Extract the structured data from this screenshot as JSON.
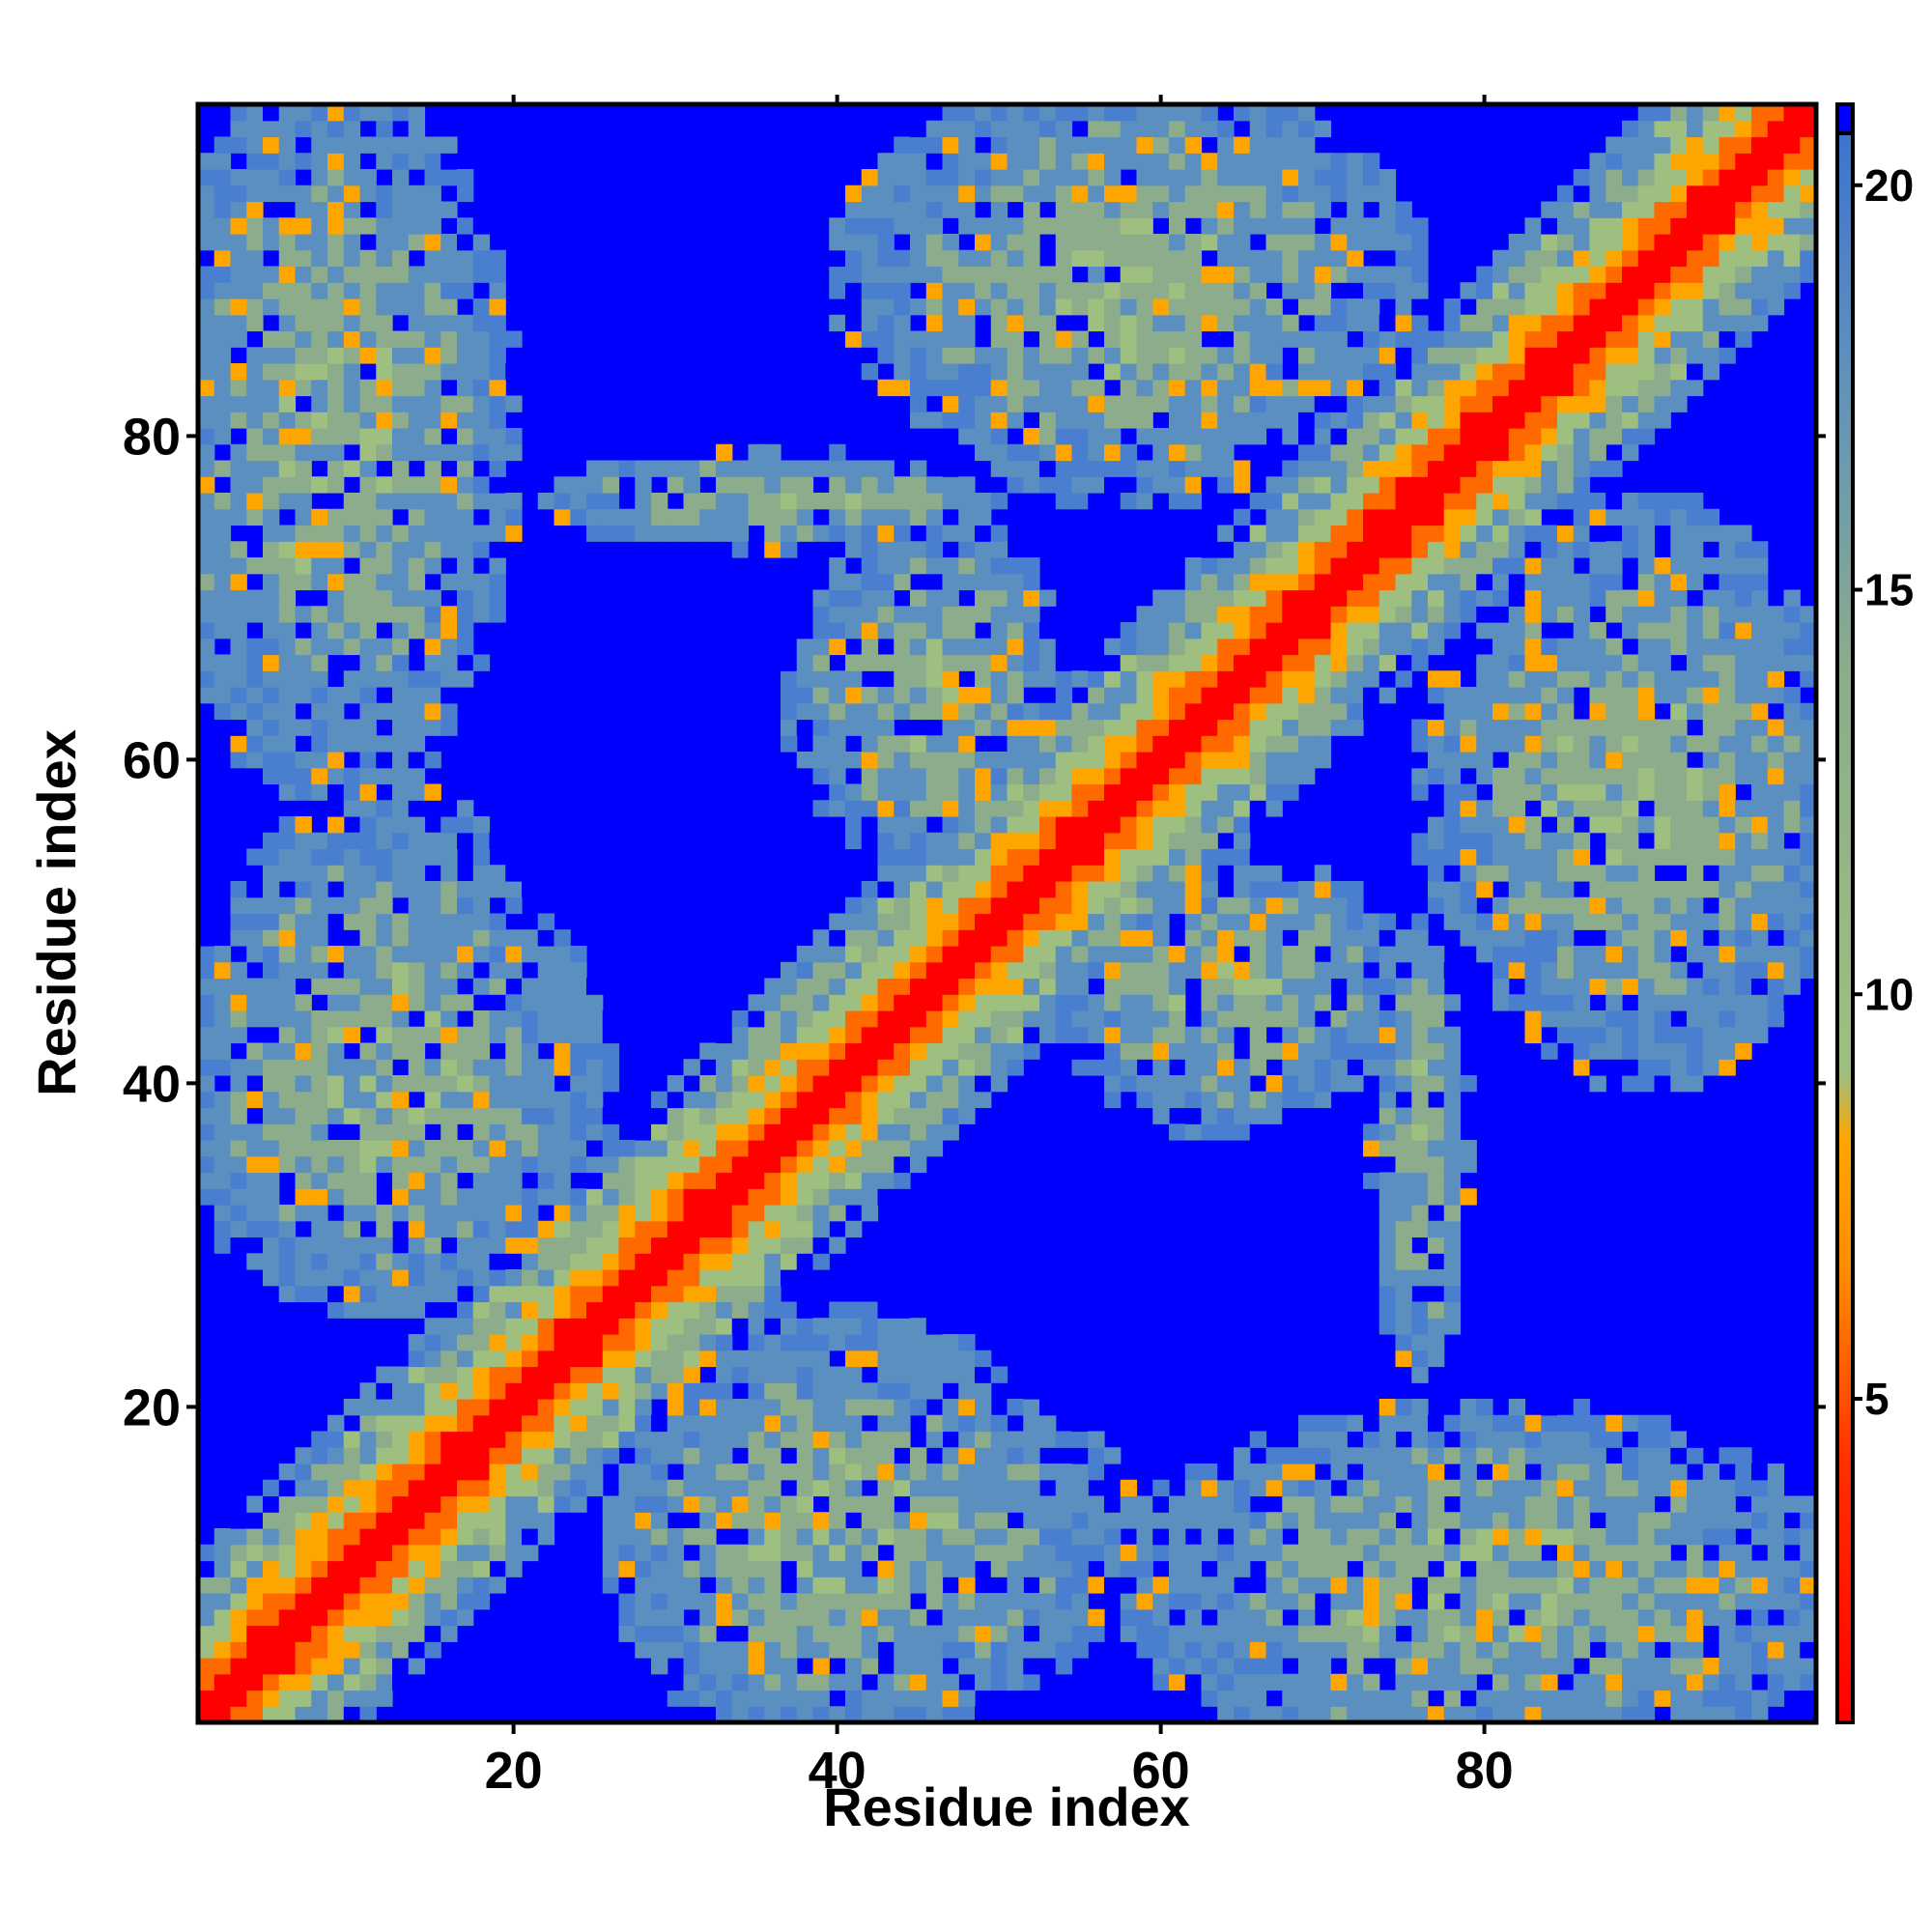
{
  "chart_data": {
    "type": "heatmap",
    "title": "",
    "xlabel": "Residue index",
    "ylabel": "Residue index",
    "n_residues": 100,
    "xlim": [
      1,
      100
    ],
    "ylim": [
      1,
      100
    ],
    "x_ticks": [
      20,
      40,
      60,
      80
    ],
    "y_ticks": [
      20,
      40,
      60,
      80
    ],
    "colorbar": {
      "ticks": [
        5,
        10,
        15,
        20
      ],
      "range": [
        1,
        21
      ],
      "colors": [
        "#ff0000",
        "#ff6a00",
        "#ffa500",
        "#9fbf80",
        "#5b8fc0",
        "#0000ff"
      ]
    },
    "grid": false,
    "description_values": "Symmetric residue-residue distance map; values near 1 along the diagonal rising to ~21 (saturated blue) far from contacts.",
    "contact_regions": [
      {
        "x": [
          1,
          100
        ],
        "y": [
          1,
          100
        ],
        "note": "main diagonal, value ~1"
      },
      {
        "x": [
          1,
          30
        ],
        "y": [
          1,
          30
        ],
        "note": "N-terminal block"
      },
      {
        "x": [
          1,
          16
        ],
        "y": [
          60,
          100
        ],
        "note": "off-diagonal band"
      },
      {
        "x": [
          1,
          25
        ],
        "y": [
          26,
          53
        ],
        "note": "off-diagonal band"
      },
      {
        "x": [
          26,
          55
        ],
        "y": [
          1,
          22
        ],
        "note": "off-diagonal band"
      },
      {
        "x": [
          45,
          70
        ],
        "y": [
          72,
          100
        ],
        "note": "off-diagonal band"
      },
      {
        "x": [
          58,
          100
        ],
        "y": [
          1,
          22
        ],
        "note": "off-diagonal band"
      },
      {
        "x": [
          80,
          100
        ],
        "y": [
          40,
          75
        ],
        "note": "off-diagonal band"
      }
    ]
  }
}
